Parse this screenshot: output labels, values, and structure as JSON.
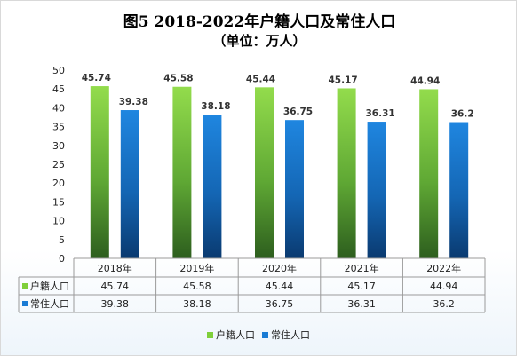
{
  "chart_data": {
    "type": "bar",
    "title": "图5  2018-2022年户籍人口及常住人口",
    "subtitle": "（单位：万人）",
    "categories": [
      "2018年",
      "2019年",
      "2020年",
      "2021年",
      "2022年"
    ],
    "series": [
      {
        "name": "户籍人口",
        "values": [
          45.74,
          45.58,
          45.44,
          45.17,
          44.94
        ],
        "color": "#7fcf3a"
      },
      {
        "name": "常住人口",
        "values": [
          39.38,
          38.18,
          36.75,
          36.31,
          36.2
        ],
        "color": "#1a7bd4"
      }
    ],
    "value_labels": {
      "户籍人口": [
        "45.74",
        "45.58",
        "45.44",
        "45.17",
        "44.94"
      ],
      "常住人口": [
        "39.38",
        "38.18",
        "36.75",
        "36.31",
        "36.2"
      ]
    },
    "ylim": [
      0,
      50
    ],
    "yticks": [
      0,
      5,
      10,
      15,
      20,
      25,
      30,
      35,
      40,
      45,
      50
    ],
    "grid": false,
    "data_table": true,
    "legend_position": "bottom"
  }
}
